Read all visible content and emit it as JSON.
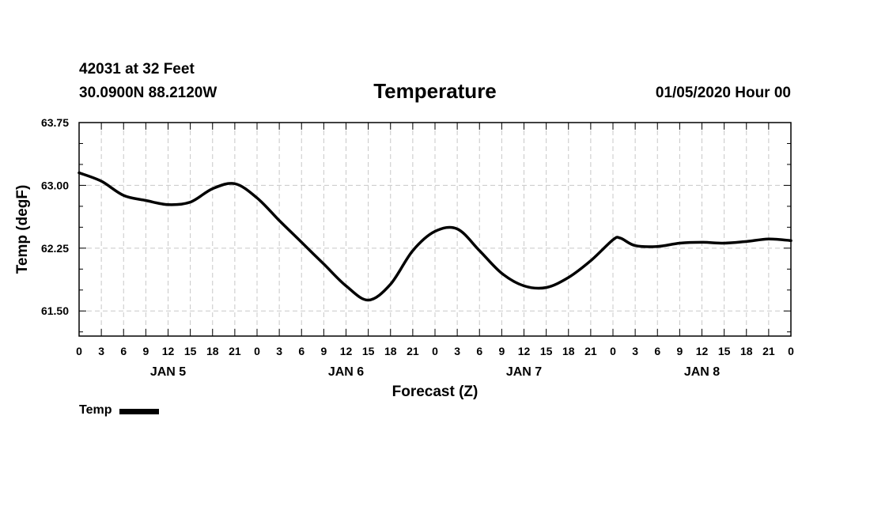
{
  "header": {
    "station": "42031 at 32 Feet",
    "coords": "30.0900N 88.2120W",
    "datetime": "01/05/2020 Hour 00"
  },
  "legend": {
    "label": "Temp",
    "color": "#000000"
  },
  "chart_data": {
    "type": "line",
    "title": "Temperature",
    "xlabel": "Forecast (Z)",
    "ylabel": "Temp (degF)",
    "xlim": [
      0,
      96
    ],
    "ylim": [
      61.2,
      63.75
    ],
    "yticks": [
      61.5,
      62.25,
      63.0,
      63.75
    ],
    "ytick_labels": [
      "61.50",
      "62.25",
      "63.00",
      "63.75"
    ],
    "xtick_step": 3,
    "xtick_labels": [
      "0",
      "3",
      "6",
      "9",
      "12",
      "15",
      "18",
      "21",
      "0",
      "3",
      "6",
      "9",
      "12",
      "15",
      "18",
      "21",
      "0",
      "3",
      "6",
      "9",
      "12",
      "15",
      "18",
      "21",
      "0",
      "3",
      "6",
      "9",
      "12",
      "15",
      "18",
      "21",
      "0"
    ],
    "day_labels": [
      {
        "label": "JAN 5",
        "x": 12
      },
      {
        "label": "JAN 6",
        "x": 36
      },
      {
        "label": "JAN 7",
        "x": 60
      },
      {
        "label": "JAN 8",
        "x": 84
      }
    ],
    "grid": true,
    "series": [
      {
        "name": "Temp",
        "color": "#000000",
        "x": [
          0,
          3,
          6,
          9,
          12,
          15,
          18,
          21,
          24,
          27,
          30,
          33,
          36,
          39,
          42,
          45,
          48,
          51,
          54,
          57,
          60,
          63,
          66,
          69,
          72,
          73,
          75,
          78,
          81,
          84,
          87,
          90,
          93,
          96
        ],
        "y": [
          63.15,
          63.05,
          62.88,
          62.82,
          62.77,
          62.8,
          62.96,
          63.02,
          62.85,
          62.58,
          62.32,
          62.06,
          61.8,
          61.63,
          61.82,
          62.22,
          62.45,
          62.48,
          62.22,
          61.95,
          61.8,
          61.78,
          61.9,
          62.1,
          62.35,
          62.37,
          62.28,
          62.27,
          62.31,
          62.32,
          62.31,
          62.33,
          62.36,
          62.34
        ]
      }
    ]
  }
}
